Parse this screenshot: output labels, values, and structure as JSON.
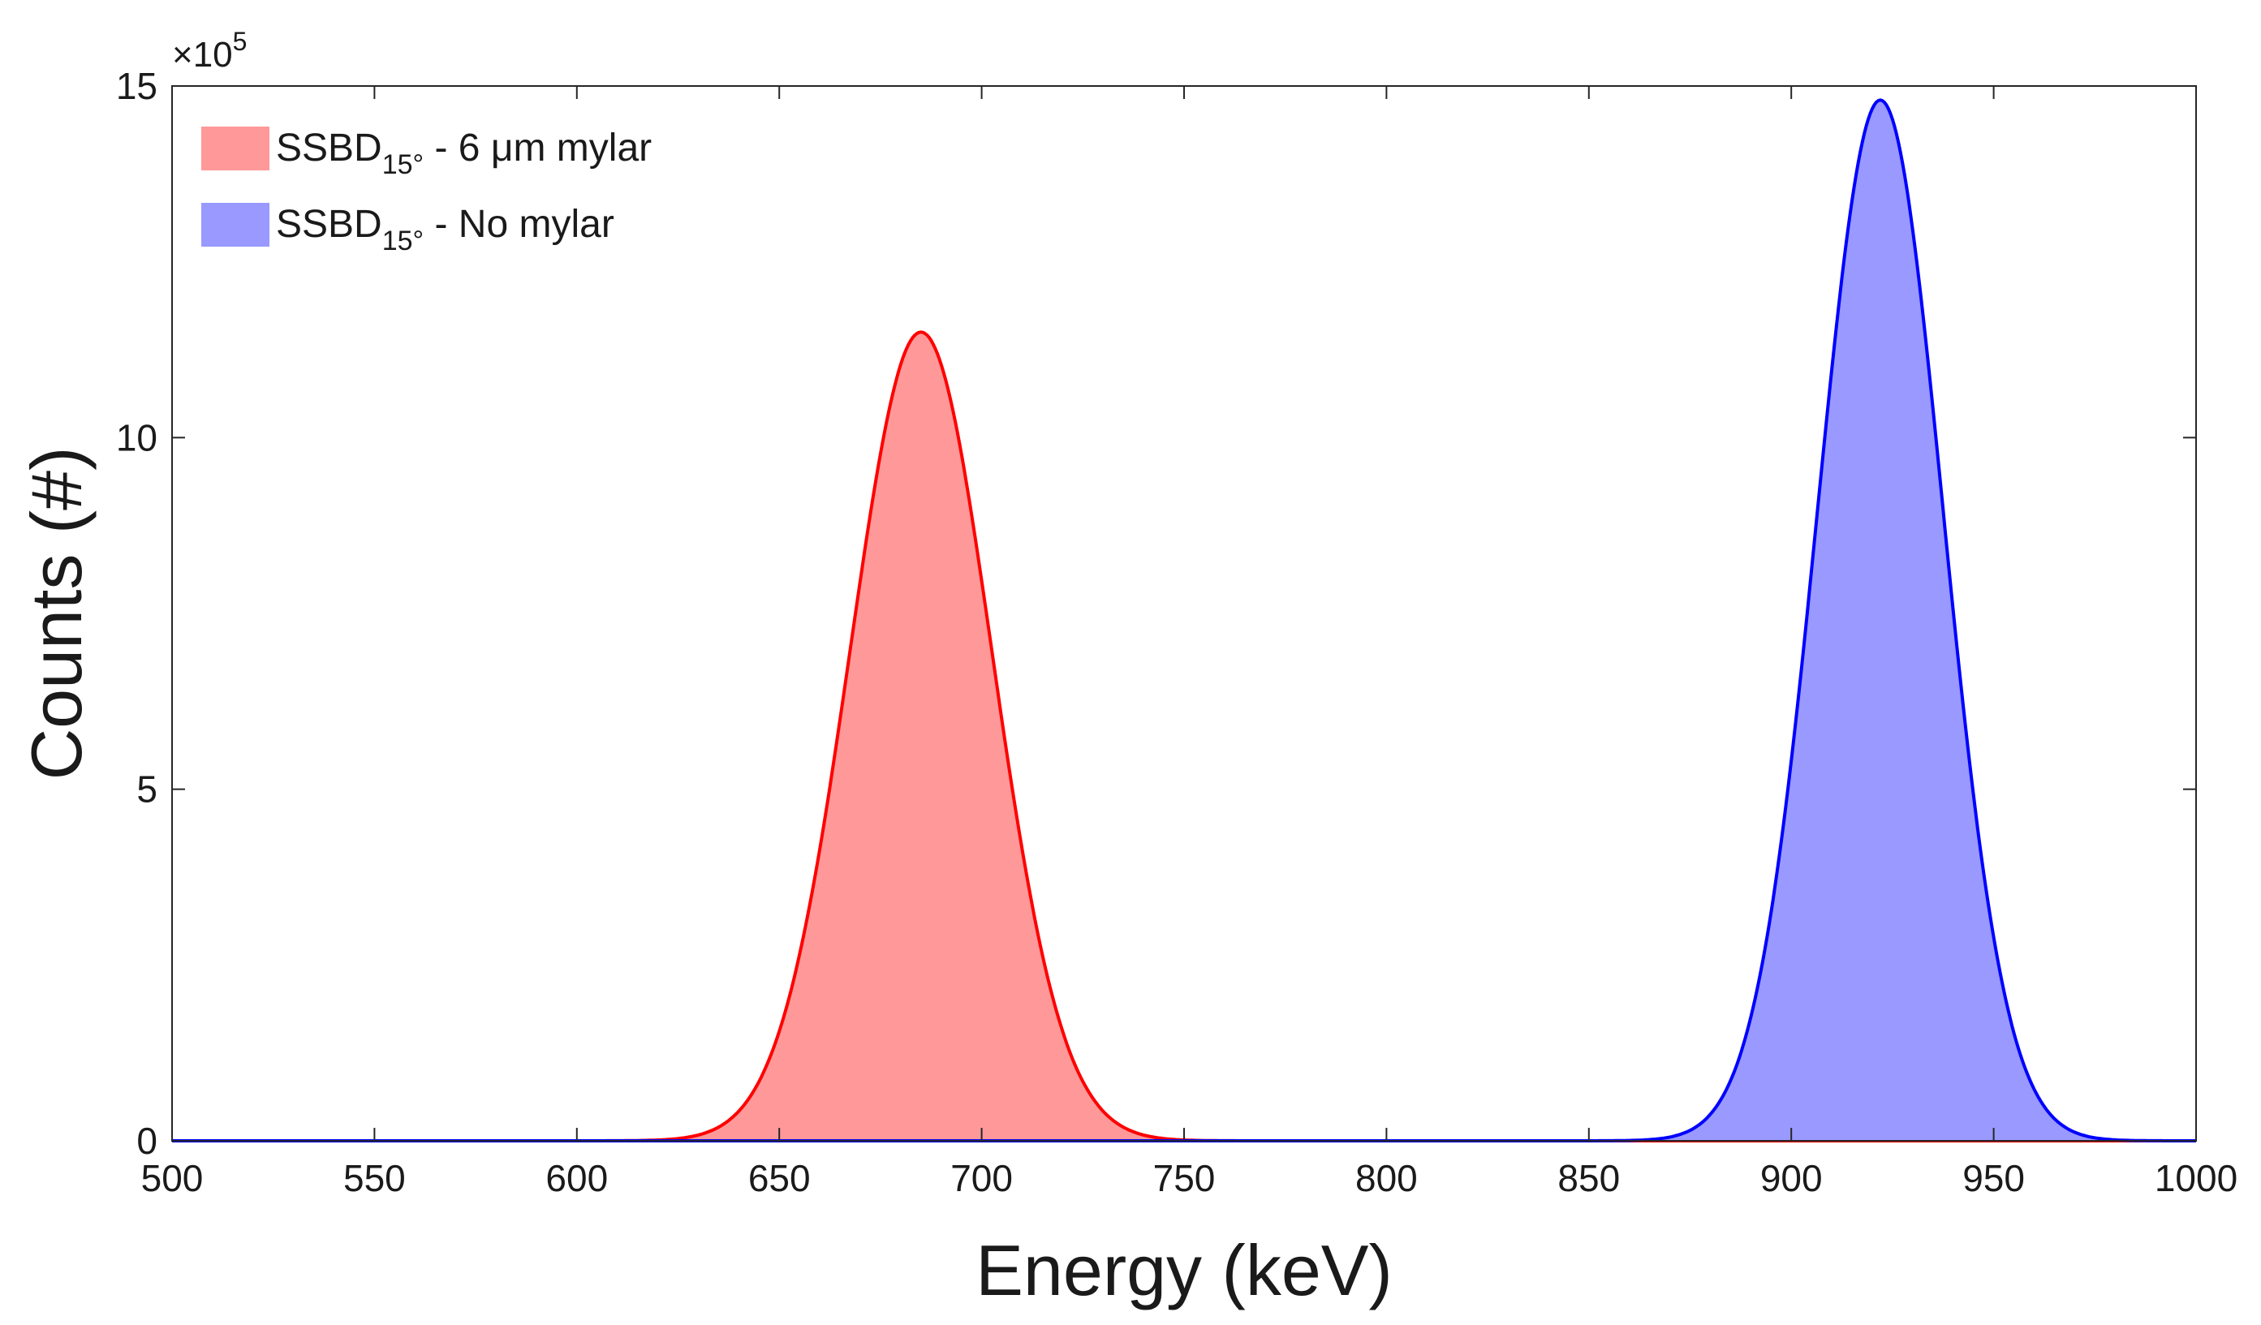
{
  "chart_data": {
    "type": "area",
    "title": "",
    "xlabel": "Energy (keV)",
    "ylabel": "Counts (#)",
    "xlim": [
      500,
      1000
    ],
    "ylim": [
      0,
      15
    ],
    "y_multiplier": {
      "base": "×10",
      "exponent": "5"
    },
    "x_ticks": [
      500,
      550,
      600,
      650,
      700,
      750,
      800,
      850,
      900,
      950,
      1000
    ],
    "y_ticks": [
      0,
      5,
      10,
      15
    ],
    "grid": false,
    "legend_position": "top-left",
    "series": [
      {
        "name": "SSBD - 6 μm mylar",
        "legend_main": "SSBD",
        "legend_sub": "15°",
        "legend_suffix": " - 6 μm mylar",
        "line_color": "#ff0000",
        "fill_color": "#ff9999",
        "peak_energy": 685,
        "peak_counts": 11.5,
        "sigma": 17.5
      },
      {
        "name": "SSBD - No mylar",
        "legend_main": "SSBD",
        "legend_sub": "15°",
        "legend_suffix": " - No mylar",
        "line_color": "#0000ff",
        "fill_color": "#9999ff",
        "peak_energy": 922,
        "peak_counts": 14.8,
        "sigma": 15.5
      }
    ]
  }
}
